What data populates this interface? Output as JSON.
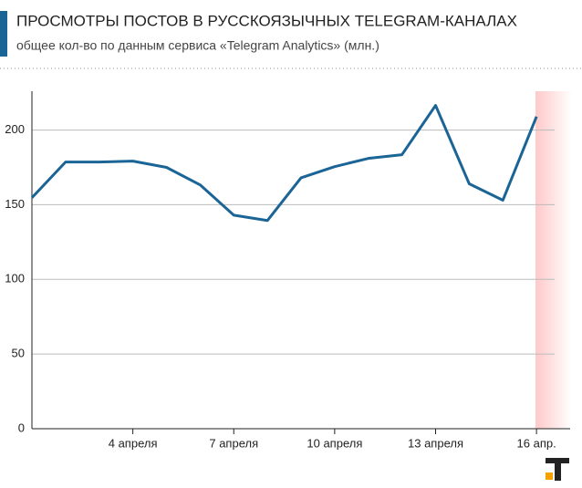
{
  "chart_data": {
    "type": "line",
    "title": "ПРОСМОТРЫ ПОСТОВ В РУССКОЯЗЫЧНЫХ TELEGRAM-КАНАЛАХ",
    "subtitle": "общее кол-во по данным сервиса «Telegram Analytics» (млн.)",
    "x": [
      1,
      2,
      3,
      4,
      5,
      6,
      7,
      8,
      9,
      10,
      11,
      12,
      13,
      14,
      15,
      16
    ],
    "series": [
      {
        "color": "#1b6496",
        "values": [
          154.7,
          178.6,
          178.6,
          179.2,
          175,
          163.3,
          143,
          139.4,
          168,
          175.5,
          181,
          183.5,
          216.5,
          164,
          153,
          209
        ]
      }
    ],
    "xlim": [
      1,
      17
    ],
    "xticks": [
      {
        "value": 4,
        "label": "4 апреля"
      },
      {
        "value": 7,
        "label": "7 апреля"
      },
      {
        "value": 10,
        "label": "10 апреля"
      },
      {
        "value": 13,
        "label": "13 апреля"
      },
      {
        "value": 16,
        "label": "16 апр."
      }
    ],
    "ylim": [
      0,
      226
    ],
    "yticks": [
      0,
      50,
      100,
      150,
      200
    ],
    "grid": true
  }
}
